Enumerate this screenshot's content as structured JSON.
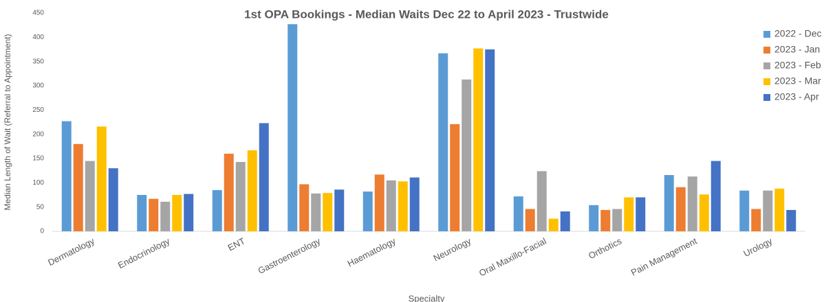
{
  "chart_data": {
    "type": "bar",
    "title": "1st OPA Bookings - Median Waits Dec 22 to April 2023 - Trustwide",
    "x_label": "Specialty",
    "y_label": "Median Length of Wait (Referral to Appointment)",
    "categories": [
      "Dermatology",
      "Endocrinology",
      "ENT",
      "Gastroenterology",
      "Haematology",
      "Neurology",
      "Oral Maxillo-Facial",
      "Orthotics",
      "Pain Management",
      "Urology"
    ],
    "series": [
      {
        "name": "2022 - Dec",
        "color": "#5b9bd5",
        "values": [
          227,
          75,
          85,
          427,
          82,
          367,
          72,
          54,
          116,
          84
        ]
      },
      {
        "name": "2023 - Jan",
        "color": "#ed7d31",
        "values": [
          180,
          67,
          160,
          97,
          117,
          221,
          46,
          44,
          91,
          46
        ]
      },
      {
        "name": "2023 - Feb",
        "color": "#a5a5a5",
        "values": [
          145,
          61,
          143,
          78,
          105,
          313,
          124,
          46,
          113,
          84
        ]
      },
      {
        "name": "2023 - Mar",
        "color": "#ffc000",
        "values": [
          216,
          75,
          167,
          79,
          103,
          377,
          26,
          70,
          76,
          88
        ]
      },
      {
        "name": "2023 - Apr",
        "color": "#4472c4",
        "values": [
          130,
          77,
          223,
          86,
          111,
          375,
          41,
          70,
          145,
          44
        ]
      }
    ],
    "ylim": [
      0,
      450
    ],
    "yticks": [
      0,
      50,
      100,
      150,
      200,
      250,
      300,
      350,
      400,
      450
    ],
    "legend": "right"
  }
}
